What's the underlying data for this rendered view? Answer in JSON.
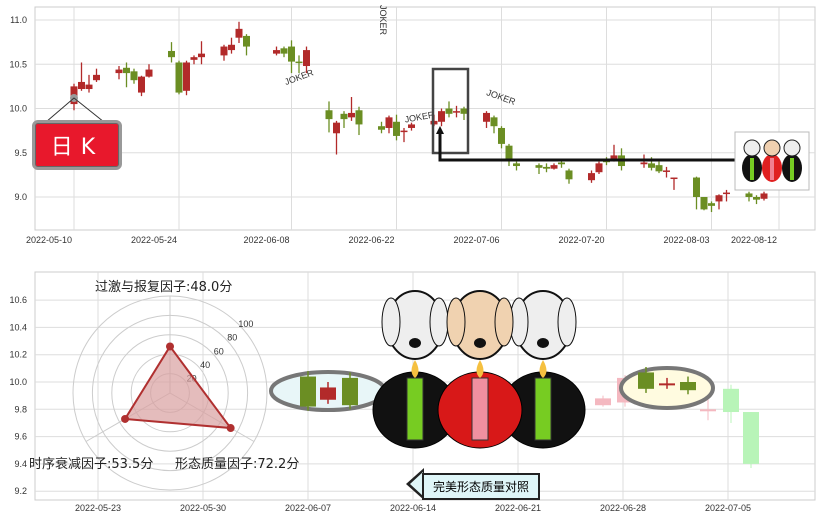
{
  "top_chart": {
    "type": "candlestick",
    "y_ticks": [
      "11.0",
      "10.5",
      "10.0",
      "9.5",
      "9.0"
    ],
    "y_values": [
      11.0,
      10.5,
      10.0,
      9.5,
      9.0
    ],
    "ylim": [
      8.7,
      11.25
    ],
    "x_ticks": [
      "2022-05-10",
      "2022-05-24",
      "2022-06-08",
      "2022-06-22",
      "2022-07-06",
      "2022-07-20",
      "2022-08-03",
      "2022-08-12"
    ],
    "badge": "日K",
    "colors": {
      "up": "#b22a2a",
      "down": "#6b8e23"
    },
    "candles": [
      [
        "2022-05-10",
        10.05,
        10.28,
        9.98,
        10.25
      ],
      [
        "2022-05-11",
        10.22,
        10.52,
        10.2,
        10.3
      ],
      [
        "2022-05-12",
        10.22,
        10.38,
        10.18,
        10.27
      ],
      [
        "2022-05-13",
        10.32,
        10.45,
        10.3,
        10.38
      ],
      [
        "2022-05-16",
        10.4,
        10.48,
        10.33,
        10.44
      ],
      [
        "2022-05-17",
        10.46,
        10.52,
        10.24,
        10.4
      ],
      [
        "2022-05-18",
        10.42,
        10.45,
        10.28,
        10.32
      ],
      [
        "2022-05-19",
        10.18,
        10.37,
        10.14,
        10.36
      ],
      [
        "2022-05-20",
        10.36,
        10.5,
        10.35,
        10.44
      ],
      [
        "2022-05-23",
        10.65,
        10.75,
        10.52,
        10.58
      ],
      [
        "2022-05-24",
        10.52,
        10.54,
        10.16,
        10.18
      ],
      [
        "2022-05-25",
        10.2,
        10.54,
        10.15,
        10.52
      ],
      [
        "2022-05-26",
        10.55,
        10.6,
        10.5,
        10.58
      ],
      [
        "2022-05-27",
        10.58,
        10.76,
        10.5,
        10.62
      ],
      [
        "2022-05-30",
        10.6,
        10.72,
        10.54,
        10.7
      ],
      [
        "2022-05-31",
        10.66,
        10.8,
        10.62,
        10.72
      ],
      [
        "2022-06-01",
        10.8,
        10.98,
        10.74,
        10.9
      ],
      [
        "2022-06-02",
        10.82,
        10.84,
        10.6,
        10.7
      ],
      [
        "2022-06-06",
        10.62,
        10.7,
        10.6,
        10.66
      ],
      [
        "2022-06-07",
        10.68,
        10.7,
        10.58,
        10.62
      ],
      [
        "2022-06-08",
        10.7,
        10.77,
        10.4,
        10.53
      ],
      [
        "2022-06-09",
        10.53,
        10.6,
        10.4,
        10.52
      ],
      [
        "2022-06-10",
        10.48,
        10.7,
        10.4,
        10.66
      ],
      [
        "2022-06-13",
        9.98,
        10.08,
        9.73,
        9.88
      ],
      [
        "2022-06-14",
        9.72,
        9.86,
        9.48,
        9.84
      ],
      [
        "2022-06-15",
        9.94,
        9.97,
        9.78,
        9.88
      ],
      [
        "2022-06-16",
        9.9,
        10.13,
        9.86,
        9.95
      ],
      [
        "2022-06-17",
        9.98,
        10.02,
        9.7,
        9.82
      ],
      [
        "2022-06-20",
        9.8,
        9.85,
        9.72,
        9.76
      ],
      [
        "2022-06-21",
        9.78,
        9.92,
        9.72,
        9.9
      ],
      [
        "2022-06-22",
        9.85,
        9.93,
        9.64,
        9.69
      ],
      [
        "2022-06-23",
        9.74,
        9.78,
        9.62,
        9.75
      ],
      [
        "2022-06-24",
        9.78,
        9.84,
        9.75,
        9.82
      ],
      [
        "2022-06-27",
        9.82,
        9.93,
        9.8,
        9.86
      ],
      [
        "2022-06-28",
        9.85,
        10.0,
        9.8,
        9.97
      ],
      [
        "2022-06-29",
        10.0,
        10.08,
        9.9,
        9.94
      ],
      [
        "2022-06-30",
        9.96,
        10.03,
        9.9,
        9.97
      ],
      [
        "2022-07-01",
        10.0,
        10.02,
        9.87,
        9.94
      ],
      [
        "2022-07-04",
        9.85,
        9.97,
        9.78,
        9.95
      ],
      [
        "2022-07-05",
        9.9,
        9.92,
        9.72,
        9.8
      ],
      [
        "2022-07-06",
        9.78,
        9.8,
        9.55,
        9.6
      ],
      [
        "2022-07-07",
        9.58,
        9.6,
        9.35,
        9.42
      ],
      [
        "2022-07-08",
        9.38,
        9.4,
        9.3,
        9.35
      ],
      [
        "2022-07-11",
        9.36,
        9.38,
        9.26,
        9.33
      ],
      [
        "2022-07-12",
        9.34,
        9.38,
        9.28,
        9.32
      ],
      [
        "2022-07-13",
        9.32,
        9.38,
        9.31,
        9.36
      ],
      [
        "2022-07-14",
        9.39,
        9.42,
        9.33,
        9.37
      ],
      [
        "2022-07-15",
        9.3,
        9.32,
        9.15,
        9.2
      ],
      [
        "2022-07-18",
        9.19,
        9.3,
        9.16,
        9.27
      ],
      [
        "2022-07-19",
        9.28,
        9.4,
        9.26,
        9.38
      ],
      [
        "2022-07-20",
        9.41,
        9.45,
        9.36,
        9.4
      ],
      [
        "2022-07-21",
        9.42,
        9.59,
        9.4,
        9.47
      ],
      [
        "2022-07-22",
        9.47,
        9.55,
        9.3,
        9.35
      ],
      [
        "2022-07-25",
        9.37,
        9.48,
        9.33,
        9.39
      ],
      [
        "2022-07-26",
        9.38,
        9.45,
        9.3,
        9.33
      ],
      [
        "2022-07-27",
        9.36,
        9.4,
        9.27,
        9.29
      ],
      [
        "2022-07-28",
        9.29,
        9.34,
        9.22,
        9.3
      ],
      [
        "2022-07-29",
        9.22,
        9.22,
        9.08,
        9.22
      ],
      [
        "2022-08-01",
        9.22,
        9.23,
        8.86,
        9.0
      ],
      [
        "2022-08-02",
        9.0,
        9.0,
        8.85,
        8.86
      ],
      [
        "2022-08-03",
        8.93,
        8.95,
        8.83,
        8.9
      ],
      [
        "2022-08-04",
        8.95,
        9.03,
        8.86,
        9.02
      ],
      [
        "2022-08-05",
        9.04,
        9.08,
        8.95,
        9.05
      ],
      [
        "2022-08-08",
        9.04,
        9.06,
        8.95,
        9.0
      ],
      [
        "2022-08-09",
        9.0,
        9.02,
        8.92,
        8.97
      ],
      [
        "2022-08-10",
        8.98,
        9.06,
        8.96,
        9.04
      ]
    ]
  },
  "bottom_chart": {
    "y_ticks": [
      "10.6",
      "10.4",
      "10.2",
      "10.0",
      "9.8",
      "9.6",
      "9.4",
      "9.2"
    ],
    "y_values": [
      10.6,
      10.4,
      10.2,
      10.0,
      9.8,
      9.6,
      9.4,
      9.2
    ],
    "x_ticks": [
      "2022-05-23",
      "2022-05-30",
      "2022-06-07",
      "2022-06-14",
      "2022-06-21",
      "2022-06-28",
      "2022-07-05"
    ],
    "compare_label": "完美形态质量对照"
  },
  "radar": {
    "ring_labels": [
      "20",
      "40",
      "60",
      "80",
      "100"
    ],
    "factors": [
      {
        "label": "过激与报复因子:48.0分",
        "score": 48.0
      },
      {
        "label": "时序衰减因子:53.5分",
        "score": 53.5
      },
      {
        "label": "形态质量因子:72.2分",
        "score": 72.2
      }
    ],
    "colors": {
      "fill": "#d9a0a0",
      "stroke": "#b03030"
    }
  }
}
